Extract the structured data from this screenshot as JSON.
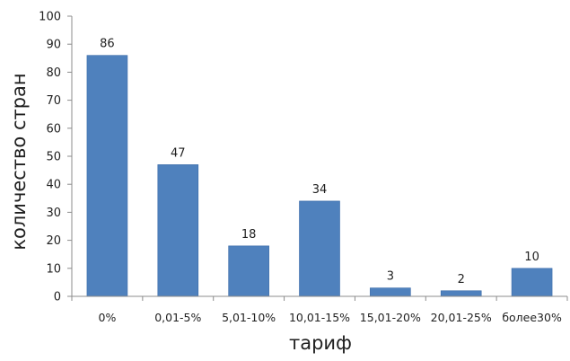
{
  "chart_data": {
    "type": "bar",
    "title": "",
    "xlabel": "тариф",
    "ylabel": "количество стран",
    "ylim": [
      0,
      100
    ],
    "yticks": [
      0,
      10,
      20,
      30,
      40,
      50,
      60,
      70,
      80,
      90,
      100
    ],
    "categories": [
      "0%",
      "0,01-5%",
      "5,01-10%",
      "10,01-15%",
      "15,01-20%",
      "20,01-25%",
      "более30%"
    ],
    "values": [
      86,
      47,
      18,
      34,
      3,
      2,
      10
    ],
    "data_labels": true,
    "grid": false,
    "legend": "none",
    "colors": {
      "bar": "#4F81BD",
      "bar_edge": "#3A6BA8",
      "axis": "#8c8c8c",
      "background": "#ffffff"
    }
  }
}
